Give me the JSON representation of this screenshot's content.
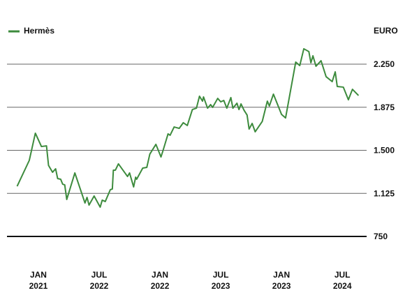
{
  "chart_data": {
    "type": "line",
    "y_axis_label": "EURO",
    "xlim": [
      -3.1,
      32.4
    ],
    "xticks": [
      {
        "value": 0,
        "label": "JAN 2021"
      },
      {
        "value": 6,
        "label": "JUL 2022"
      },
      {
        "value": 12,
        "label": "JAN 2022"
      },
      {
        "value": 18,
        "label": "JUL 2023"
      },
      {
        "value": 24,
        "label": "JAN 2023"
      },
      {
        "value": 30,
        "label": "JUL 2024"
      }
    ],
    "ylim": [
      750,
      2500
    ],
    "yticks": [
      750,
      {
        "value": 1125,
        "label": "1.125"
      },
      {
        "value": 1500,
        "label": "1.500"
      },
      {
        "value": 1875,
        "label": "1.875"
      },
      {
        "value": 2250,
        "label": "2.250"
      }
    ],
    "grid": true,
    "legend": "top-left",
    "x": [
      -2.1,
      -0.9,
      -0.3,
      0.3,
      0.8,
      1.0,
      1.4,
      1.7,
      1.9,
      2.2,
      2.4,
      2.6,
      2.8,
      3.6,
      4.6,
      4.8,
      5.0,
      5.5,
      6.1,
      6.3,
      6.6,
      7.1,
      7.3,
      7.4,
      7.6,
      7.9,
      8.8,
      9.0,
      9.4,
      9.6,
      9.7,
      10.3,
      10.7,
      11.0,
      11.6,
      12.1,
      12.3,
      12.8,
      13.0,
      13.4,
      13.9,
      14.3,
      14.7,
      15.2,
      15.6,
      15.9,
      16.2,
      16.3,
      16.7,
      17.0,
      17.2,
      17.7,
      18.0,
      18.3,
      18.6,
      19.0,
      19.2,
      19.6,
      19.8,
      20.0,
      20.3,
      20.6,
      20.8,
      21.1,
      21.4,
      22.1,
      22.6,
      22.8,
      23.2,
      24.0,
      24.4,
      25.4,
      25.8,
      26.2,
      26.7,
      26.9,
      27.1,
      27.4,
      27.9,
      28.4,
      29.0,
      29.3,
      29.5,
      30.1,
      30.6,
      31.0,
      31.6
    ],
    "series": [
      {
        "name": "Hermès",
        "color": "#3d8b3d",
        "values": [
          1187,
          1412,
          1649,
          1533,
          1539,
          1369,
          1309,
          1339,
          1254,
          1248,
          1205,
          1199,
          1072,
          1303,
          1041,
          1090,
          1023,
          1102,
          1005,
          1066,
          1054,
          1157,
          1163,
          1327,
          1327,
          1382,
          1272,
          1303,
          1181,
          1266,
          1248,
          1345,
          1351,
          1467,
          1552,
          1442,
          1497,
          1643,
          1631,
          1703,
          1691,
          1740,
          1716,
          1855,
          1867,
          1971,
          1928,
          1965,
          1867,
          1898,
          1874,
          1952,
          1922,
          1934,
          1867,
          1959,
          1867,
          1910,
          1855,
          1904,
          1849,
          1807,
          1685,
          1734,
          1661,
          1752,
          1928,
          1886,
          1989,
          1813,
          1782,
          2268,
          2238,
          2384,
          2359,
          2262,
          2323,
          2232,
          2280,
          2141,
          2098,
          2183,
          2056,
          2050,
          1940,
          2031,
          1977
        ]
      }
    ]
  }
}
